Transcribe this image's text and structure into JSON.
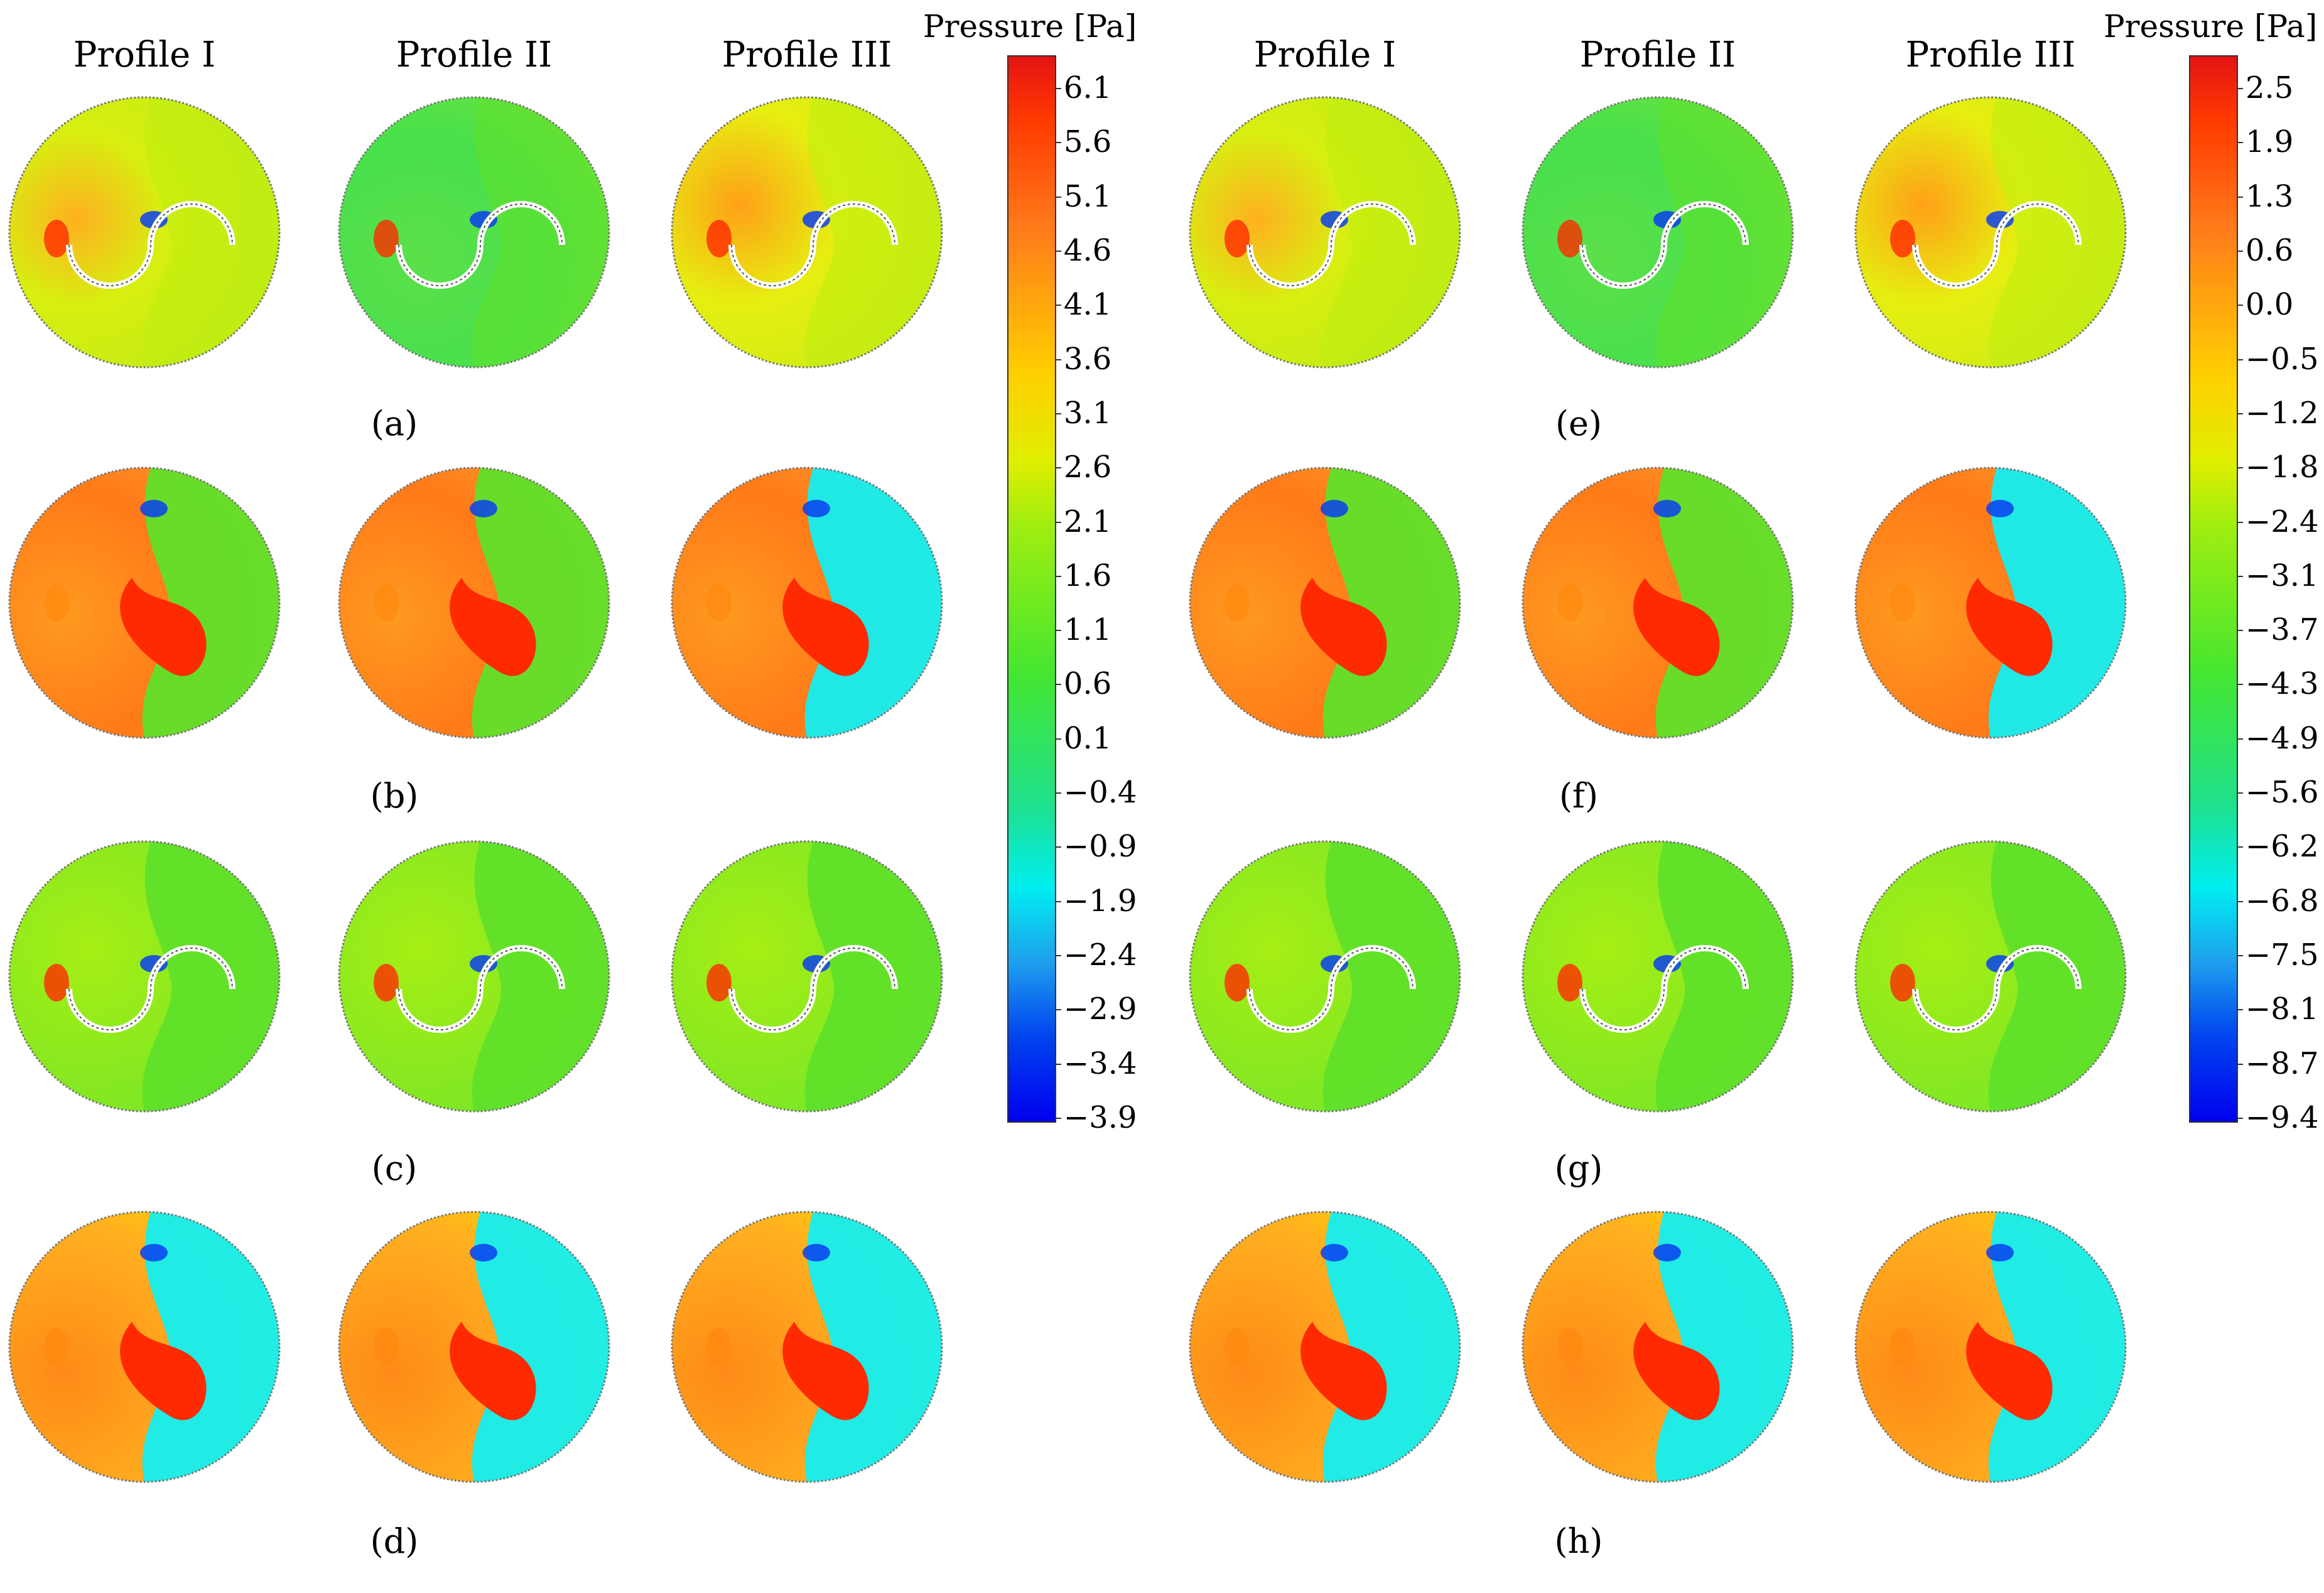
{
  "profiles": {
    "p1": "Profile I",
    "p2": "Profile II",
    "p3": "Profile III"
  },
  "colorbar_left": {
    "title": "Pressure [Pa]",
    "ticks": [
      "6.1",
      "5.6",
      "5.1",
      "4.6",
      "4.1",
      "3.6",
      "3.1",
      "2.6",
      "2.1",
      "1.6",
      "1.1",
      "0.6",
      "0.1",
      "−0.4",
      "−0.9",
      "−1.9",
      "−2.4",
      "−2.9",
      "−3.4",
      "−3.9"
    ]
  },
  "colorbar_right": {
    "title": "Pressure [Pa]",
    "ticks": [
      "2.5",
      "1.9",
      "1.3",
      "0.6",
      "0.0",
      "−0.5",
      "−1.2",
      "−1.8",
      "−2.4",
      "−3.1",
      "−3.7",
      "−4.3",
      "−4.9",
      "−5.6",
      "−6.2",
      "−6.8",
      "−7.5",
      "−8.1",
      "−8.7",
      "−9.4"
    ]
  },
  "captions": {
    "a": "(a)",
    "b": "(b)",
    "c": "(c)",
    "d": "(d)",
    "e": "(e)",
    "f": "(f)",
    "g": "(g)",
    "h": "(h)"
  },
  "colors": {
    "red": "#ff2a00",
    "orange": "#ff8a10",
    "yellow": "#ffd400",
    "yellowgreen": "#bfee10",
    "green": "#60e02a",
    "cyan": "#14eef0",
    "blue": "#0a40ee",
    "border": "#777777"
  }
}
